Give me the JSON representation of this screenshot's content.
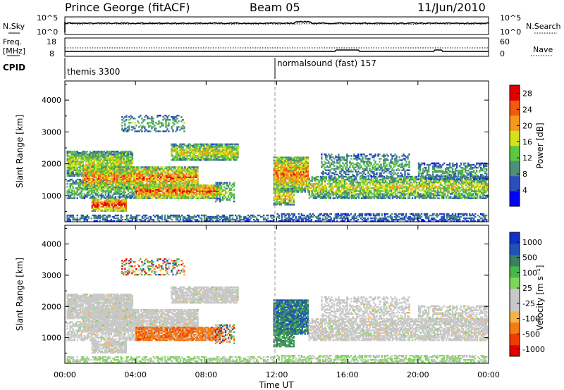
{
  "header": {
    "station": "Prince George (fitACF)",
    "beam": "Beam 05",
    "date": "11/Jun/2010"
  },
  "noise_panel": {
    "left_label": "N.Sky",
    "right_label": "N.Search",
    "left_ticks": [
      "10^5",
      "10^0"
    ],
    "right_ticks": [
      "10^5",
      "10^0"
    ]
  },
  "freq_panel": {
    "left_label_1": "Freq.",
    "left_label_2": "[MHz]",
    "right_label": "Nave",
    "left_ticks": [
      "18",
      "8"
    ],
    "right_ticks": [
      "60",
      "0"
    ]
  },
  "cpid_panel": {
    "label": "CPID",
    "modes": [
      {
        "name": "themis 3300",
        "start": "00:00"
      },
      {
        "name": "normalsound (fast) 157",
        "start": "12:00"
      }
    ]
  },
  "colors": {
    "power_scale": [
      "#0000ff",
      "#2a4fbd",
      "#4d8f7a",
      "#5ac840",
      "#d6e31c",
      "#f29a1d",
      "#ee5a11",
      "#e10000"
    ],
    "velocity_scale": [
      "#e00000",
      "#ee3c00",
      "#f47a12",
      "#f7b248",
      "#c8c8c8",
      "#c8c8c8",
      "#7fd65b",
      "#45b84a",
      "#3a7e63",
      "#2052b8",
      "#1330c8"
    ],
    "ground_scatter": "#c8c8c8"
  },
  "chart_data": [
    {
      "type": "heatmap",
      "name": "power",
      "title": "",
      "xlabel": "Time UT",
      "ylabel": "Slant Range [km]",
      "x_ticks": [
        "00:00",
        "04:00",
        "08:00",
        "12:00",
        "16:00",
        "20:00",
        "00:00"
      ],
      "y_ticks": [
        1000,
        2000,
        3000,
        4000
      ],
      "x_range_hours": [
        0,
        24
      ],
      "y_range_km": [
        180,
        4600
      ],
      "colorbar_label": "Power [dB]",
      "colorbar_ticks": [
        4,
        8,
        12,
        16,
        20,
        24,
        28
      ],
      "colorbar_range": [
        0,
        30
      ]
    },
    {
      "type": "heatmap",
      "name": "velocity",
      "title": "",
      "xlabel": "Time UT",
      "ylabel": "Slant Range [km]",
      "x_ticks": [
        "00:00",
        "04:00",
        "08:00",
        "12:00",
        "16:00",
        "20:00",
        "00:00"
      ],
      "y_ticks": [
        1000,
        2000,
        3000,
        4000
      ],
      "x_range_hours": [
        0,
        24
      ],
      "y_range_km": [
        180,
        4600
      ],
      "colorbar_label": "Velocity [m s⁻¹]",
      "colorbar_ticks": [
        "1000",
        "500",
        "100",
        "25",
        "-25",
        "-100",
        "-500",
        "-1000"
      ]
    }
  ]
}
